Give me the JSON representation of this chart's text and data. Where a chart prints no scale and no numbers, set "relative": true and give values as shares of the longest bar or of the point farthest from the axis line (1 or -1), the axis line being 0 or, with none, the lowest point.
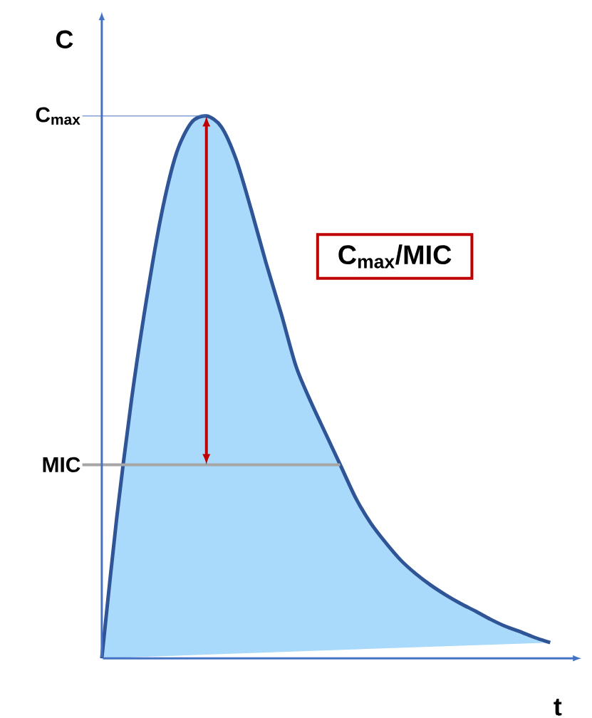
{
  "chart_data": {
    "type": "area",
    "relative": true,
    "xlabel": "t",
    "ylabel": "C",
    "categories": [
      null,
      null,
      null,
      null,
      null,
      null,
      null,
      null,
      null,
      null,
      null,
      null,
      null,
      null,
      null,
      null,
      null,
      null,
      null,
      null,
      null,
      null,
      null,
      null,
      null,
      null,
      null,
      null,
      null,
      null,
      null
    ],
    "series": [
      {
        "color": "#2f5597",
        "values": [
          0,
          0.259,
          0.479,
          0.663,
          0.82,
          0.932,
          0.988,
          1,
          0.98,
          0.919,
          0.827,
          0.728,
          0.636,
          0.538,
          0.472,
          0.413,
          0.354,
          0.295,
          0.249,
          0.213,
          0.181,
          0.156,
          0.135,
          0.117,
          0.101,
          0.087,
          0.072,
          0.059,
          0.049,
          0.038,
          0.029
        ]
      }
    ],
    "ref_lines": [
      {
        "axis": "y",
        "value": 0.357,
        "label": "MIC",
        "color": "#a6a6a6"
      },
      {
        "axis": "y",
        "value": 1,
        "label": "C$_{max}$",
        "color": "#4472c4"
      }
    ],
    "annotations": [
      "C$_{max}$/MIC"
    ]
  }
}
